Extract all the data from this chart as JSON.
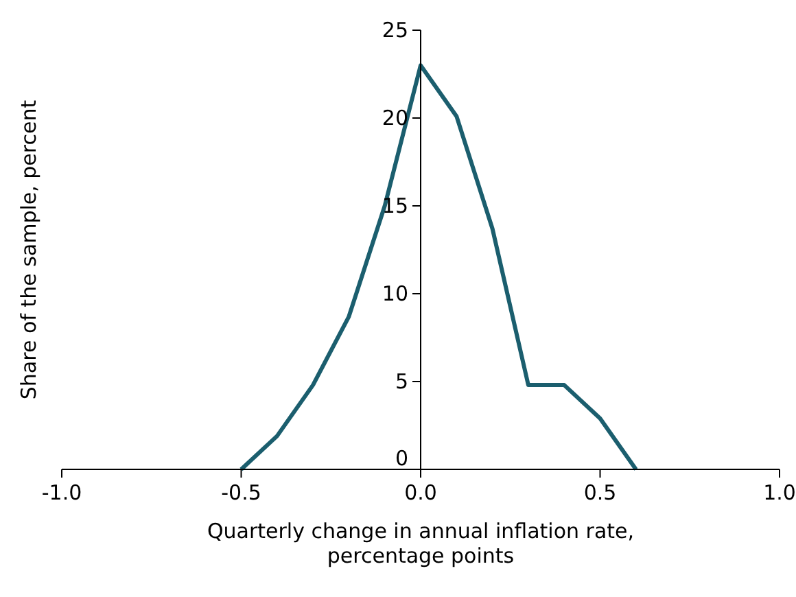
{
  "chart_data": {
    "type": "line",
    "xlabel": "Quarterly change in annual inflation rate,\npercentage points",
    "ylabel": "Share of the sample, percent",
    "x": [
      -0.5,
      -0.4,
      -0.3,
      -0.2,
      -0.1,
      0,
      0.1,
      0.2,
      0.3,
      0.4,
      0.5,
      0.6
    ],
    "series": [
      {
        "color": "#1b5e6e",
        "values": [
          0,
          1.9,
          4.8,
          8.7,
          15,
          23,
          20.1,
          13.7,
          4.8,
          4.8,
          2.9,
          0
        ]
      }
    ],
    "xlim": [
      -1,
      1
    ],
    "xticks": [
      {
        "value": -1,
        "label": "-1.0"
      },
      -0.5,
      {
        "value": 0,
        "label": "0.0"
      },
      0.5,
      {
        "value": 1,
        "label": "1.0"
      }
    ],
    "ylim": [
      0,
      25
    ],
    "yticks": [
      0,
      5,
      10,
      15,
      20,
      25
    ],
    "grid": false,
    "marker": "none",
    "line_style": "solid"
  }
}
